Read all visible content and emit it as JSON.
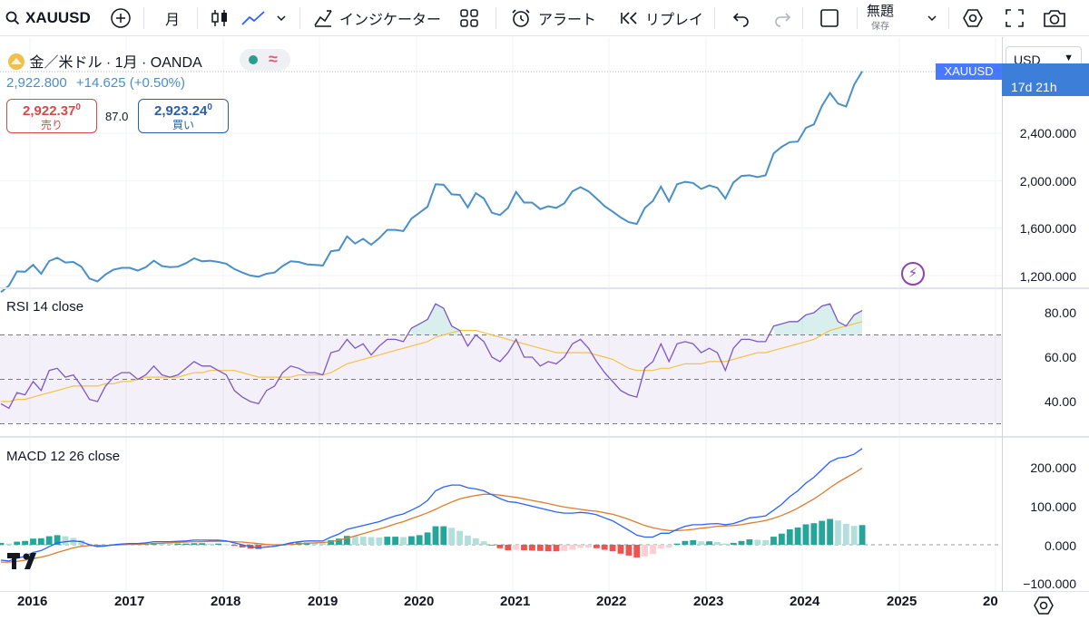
{
  "toolbar": {
    "symbol": "XAUUSD",
    "interval": "月",
    "indicators_label": "インジケーター",
    "alert_label": "アラート",
    "replay_label": "リプレイ",
    "layout_name": "無題",
    "layout_sub": "保存"
  },
  "legend": {
    "title": "金／米ドル · 1月 · OANDA",
    "price": "2,922.800",
    "change": "+14.625 (+0.50%)",
    "sell_price": "2,922.37",
    "sell_sup": "0",
    "sell_label": "売り",
    "spread": "87.0",
    "buy_price": "2,923.24",
    "buy_sup": "0",
    "buy_label": "買い"
  },
  "price_scale": {
    "currency": "USD",
    "symbol_tag": "XAUUSD",
    "countdown": "17d 21h",
    "price_ticks": [
      "2,400.000",
      "2,000.000",
      "1,600.000",
      "1,200.000"
    ],
    "rsi_ticks": [
      "80.00",
      "60.00",
      "40.00"
    ],
    "macd_ticks": [
      "200.000",
      "100.000",
      "0.000",
      "−100.000"
    ]
  },
  "panes": {
    "rsi_label": "RSI 14 close",
    "macd_label": "MACD 12 26 close"
  },
  "x_axis": [
    "2016",
    "2017",
    "2018",
    "2019",
    "2020",
    "2021",
    "2022",
    "2023",
    "2024",
    "2025",
    "20"
  ],
  "colors": {
    "price_line": "#4a90c8",
    "rsi_line": "#7e57c2",
    "rsi_ma": "#f5c242",
    "macd_line": "#2962ff",
    "signal_line": "#e07c2e",
    "hist_up": "#26a69a",
    "hist_down": "#ef5350"
  },
  "chart_data": {
    "type": "line",
    "x_start": "2015-12",
    "x_step": "1 month",
    "price": [
      1060,
      1115,
      1235,
      1232,
      1290,
      1215,
      1322,
      1350,
      1310,
      1315,
      1275,
      1175,
      1150,
      1210,
      1250,
      1265,
      1265,
      1242,
      1270,
      1325,
      1280,
      1270,
      1275,
      1305,
      1345,
      1320,
      1325,
      1315,
      1300,
      1255,
      1225,
      1200,
      1190,
      1215,
      1225,
      1280,
      1320,
      1315,
      1295,
      1290,
      1285,
      1405,
      1415,
      1530,
      1470,
      1510,
      1460,
      1515,
      1585,
      1585,
      1575,
      1680,
      1730,
      1780,
      1970,
      1965,
      1885,
      1880,
      1775,
      1895,
      1850,
      1730,
      1710,
      1770,
      1905,
      1815,
      1815,
      1760,
      1785,
      1770,
      1810,
      1910,
      1945,
      1910,
      1850,
      1785,
      1740,
      1690,
      1650,
      1635,
      1770,
      1830,
      1950,
      1825,
      1970,
      1990,
      1980,
      1930,
      1960,
      1940,
      1850,
      1985,
      2040,
      2045,
      2030,
      2045,
      2230,
      2285,
      2325,
      2330,
      2445,
      2475,
      2630,
      2740,
      2650,
      2625,
      2810,
      2922
    ],
    "rsi": [
      39,
      37,
      44,
      43,
      49,
      45,
      54,
      55,
      51,
      52,
      47,
      41,
      40,
      47,
      51,
      53,
      53,
      50,
      52,
      56,
      52,
      51,
      52,
      55,
      58,
      56,
      56,
      54,
      52,
      45,
      42,
      40,
      39,
      45,
      47,
      53,
      56,
      55,
      53,
      53,
      52,
      62,
      63,
      68,
      64,
      66,
      61,
      65,
      68,
      68,
      67,
      73,
      75,
      77,
      84,
      82,
      74,
      72,
      65,
      70,
      67,
      60,
      58,
      62,
      68,
      60,
      60,
      56,
      58,
      57,
      60,
      66,
      68,
      64,
      58,
      53,
      49,
      45,
      43,
      42,
      55,
      58,
      66,
      58,
      66,
      67,
      66,
      62,
      64,
      62,
      54,
      64,
      68,
      68,
      67,
      67,
      74,
      75,
      76,
      76,
      79,
      80,
      83,
      84,
      76,
      74,
      79,
      81
    ],
    "rsi_ma": [
      40,
      40,
      41,
      41,
      42,
      43,
      44,
      45,
      46,
      47,
      47,
      47,
      47,
      48,
      48,
      49,
      49,
      50,
      51,
      51,
      51,
      51,
      51,
      52,
      53,
      53,
      54,
      54,
      54,
      54,
      53,
      52,
      51,
      51,
      51,
      51,
      51,
      52,
      52,
      52,
      52,
      53,
      55,
      57,
      58,
      59,
      60,
      61,
      62,
      63,
      64,
      65,
      66,
      67,
      69,
      70,
      71,
      72,
      72,
      72,
      71,
      70,
      69,
      68,
      67,
      66,
      65,
      64,
      63,
      62,
      62,
      62,
      62,
      62,
      61,
      60,
      59,
      57,
      55,
      54,
      54,
      54,
      55,
      55,
      56,
      57,
      57,
      57,
      58,
      58,
      58,
      59,
      60,
      61,
      62,
      62,
      63,
      64,
      65,
      66,
      67,
      68,
      70,
      72,
      73,
      74,
      75,
      76
    ],
    "macd": [
      -40,
      -42,
      -35,
      -30,
      -20,
      -15,
      -5,
      5,
      8,
      10,
      8,
      0,
      -5,
      -3,
      0,
      2,
      3,
      3,
      5,
      8,
      8,
      8,
      9,
      10,
      12,
      12,
      12,
      12,
      10,
      5,
      0,
      -5,
      -8,
      -6,
      -4,
      0,
      5,
      8,
      10,
      10,
      10,
      20,
      28,
      40,
      45,
      50,
      55,
      60,
      68,
      75,
      80,
      90,
      100,
      115,
      140,
      150,
      155,
      155,
      148,
      145,
      140,
      130,
      120,
      112,
      110,
      105,
      100,
      95,
      90,
      85,
      82,
      82,
      84,
      82,
      78,
      70,
      62,
      50,
      38,
      25,
      20,
      20,
      30,
      30,
      40,
      48,
      52,
      52,
      54,
      55,
      52,
      55,
      62,
      70,
      72,
      75,
      90,
      105,
      125,
      140,
      160,
      175,
      195,
      215,
      225,
      228,
      235,
      250
    ],
    "signal": [
      -45,
      -45,
      -43,
      -40,
      -36,
      -32,
      -27,
      -20,
      -14,
      -8,
      -4,
      -2,
      -2,
      -2,
      -1,
      0,
      1,
      1,
      2,
      3,
      4,
      5,
      6,
      7,
      8,
      8,
      9,
      9,
      9,
      8,
      7,
      5,
      3,
      1,
      0,
      0,
      1,
      2,
      4,
      5,
      6,
      8,
      12,
      17,
      23,
      29,
      35,
      41,
      47,
      54,
      60,
      68,
      75,
      83,
      92,
      102,
      111,
      119,
      124,
      128,
      131,
      131,
      129,
      126,
      123,
      119,
      115,
      111,
      107,
      102,
      98,
      95,
      92,
      89,
      87,
      83,
      79,
      73,
      66,
      58,
      50,
      44,
      40,
      37,
      37,
      38,
      40,
      43,
      45,
      48,
      49,
      50,
      52,
      56,
      59,
      63,
      69,
      76,
      85,
      95,
      107,
      119,
      133,
      148,
      162,
      174,
      186,
      199
    ]
  }
}
